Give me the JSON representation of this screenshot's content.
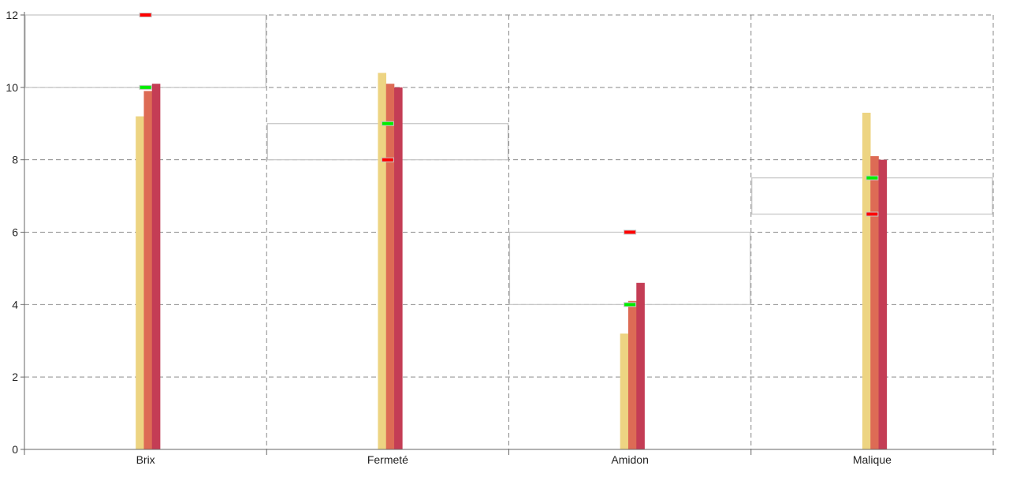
{
  "chart_data": {
    "type": "bar",
    "categories": [
      "Brix",
      "Fermeté",
      "Amidon",
      "Malique"
    ],
    "series": [
      {
        "values": [
          9.2,
          10.4,
          3.2,
          9.3
        ],
        "color": "#edd482"
      },
      {
        "values": [
          9.9,
          10.1,
          4.1,
          8.1
        ],
        "color": "#dd6b55"
      },
      {
        "values": [
          10.1,
          10.0,
          4.6,
          8.0
        ],
        "color": "#c43d55"
      }
    ],
    "target_ranges": [
      {
        "green": 10,
        "red": 12
      },
      {
        "green": 9,
        "red": 8
      },
      {
        "green": 4,
        "red": 6
      },
      {
        "green": 7.5,
        "red": 6.5
      }
    ],
    "marker_colors": {
      "green": "#00ee00",
      "red": "#ff0000"
    },
    "ylim": [
      0,
      12
    ],
    "yticks": [
      "0",
      "2",
      "4",
      "6",
      "8",
      "10",
      "12"
    ],
    "grid": true,
    "xlabel": "",
    "ylabel": "",
    "title": ""
  }
}
